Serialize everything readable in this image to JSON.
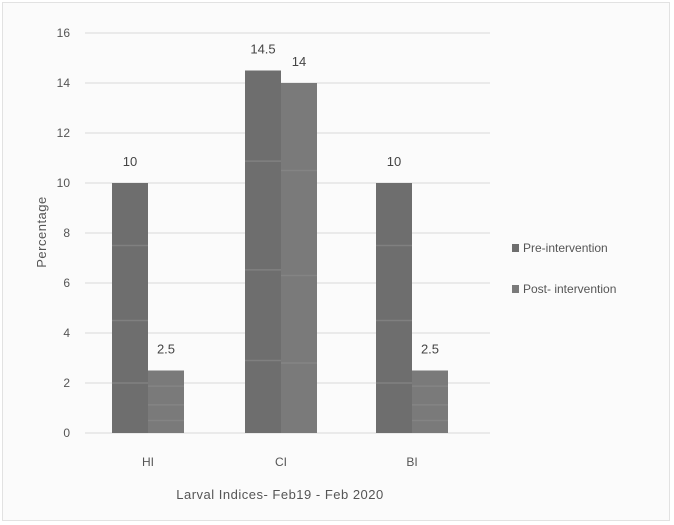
{
  "chart_data": {
    "type": "bar",
    "title": "",
    "xlabel": "Larval Indices- Feb19 - Feb 2020",
    "ylabel": "Percentage",
    "categories": [
      "HI",
      "CI",
      "BI"
    ],
    "series": [
      {
        "name": "Pre-intervention",
        "values": [
          10,
          14.5,
          10
        ],
        "labels": [
          "10",
          "14.5",
          "10"
        ]
      },
      {
        "name": "Post- intervention",
        "values": [
          2.5,
          14,
          2.5
        ],
        "labels": [
          "2.5",
          "14",
          "2.5"
        ]
      }
    ],
    "ylim": [
      0,
      16
    ],
    "yticks": [
      "0",
      "2",
      "4",
      "6",
      "8",
      "10",
      "12",
      "14",
      "16"
    ],
    "grid": true,
    "legend_position": "right",
    "colors": {
      "pre": "#6e6e6e",
      "post": "#7a7a7a",
      "grid": "#d9d9d9"
    }
  }
}
